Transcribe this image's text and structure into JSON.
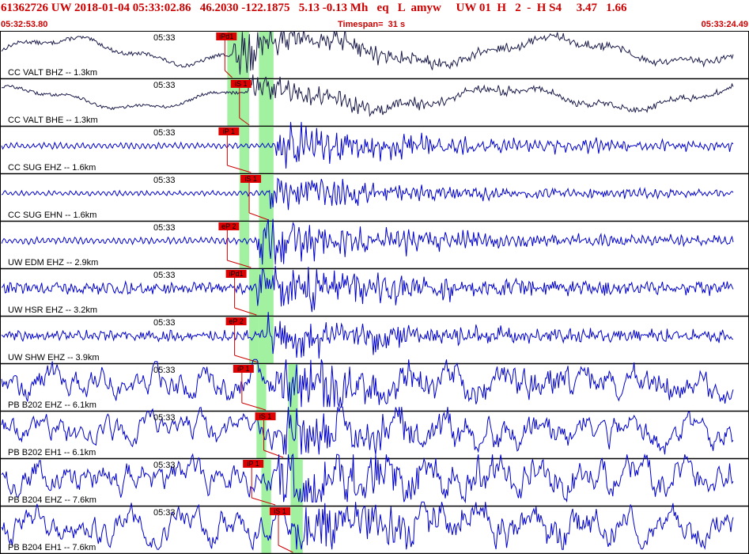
{
  "header": {
    "event_line": "61362726 UW 2018-01-04 05:33:02.86   46.2030 -122.1875   5.13 -0.13 Mh   eq   L  amyw     UW 01  H   2  -  H S4     3.47   1.66",
    "start_time": "05:32:53.80",
    "timespan": "Timespan=  31 s",
    "end_time": "05:33:24.49"
  },
  "colors": {
    "label_text": "#cc0000",
    "trace_accel": "#1a1a4a",
    "trace_vel": "#0000cc",
    "phase_box": "#dd0000",
    "phase_line": "#cc0000",
    "window_fill": "#90ee90",
    "divider": "#000000"
  },
  "chart_data": {
    "type": "line",
    "time_start_s": 0,
    "time_end_s": 30.69,
    "timespan_s": 31,
    "panels": [
      {
        "tick": "05:33",
        "label": "CC VALT BHZ -- 1.3km",
        "phase": "iPd1",
        "phase_time_s": 9.2,
        "windows": [
          [
            9.3,
            10.2
          ],
          [
            10.6,
            11.2
          ]
        ],
        "waveform": "long-period",
        "amplitude": 0.55,
        "onset_s": 9.5
      },
      {
        "tick": "05:33",
        "label": "CC VALT BHE -- 1.3km",
        "phase": "iS 1",
        "phase_time_s": 9.8,
        "windows": [
          [
            9.3,
            10.2
          ],
          [
            10.6,
            11.2
          ]
        ],
        "waveform": "long-period",
        "amplitude": 0.45,
        "onset_s": 10.2
      },
      {
        "tick": "05:33",
        "label": "CC SUG EHZ -- 1.6km",
        "phase": "iP 1",
        "phase_time_s": 9.3,
        "windows": [
          [
            9.8,
            10.2
          ],
          [
            10.6,
            11.2
          ]
        ],
        "waveform": "short-period",
        "amplitude": 0.5,
        "onset_s": 11.3
      },
      {
        "tick": "05:33",
        "label": "CC SUG EHN -- 1.6km",
        "phase": "iS 1",
        "phase_time_s": 10.2,
        "windows": [
          [
            9.8,
            10.2
          ],
          [
            10.6,
            11.2
          ]
        ],
        "waveform": "short-period",
        "amplitude": 0.4,
        "onset_s": 11.0
      },
      {
        "tick": "05:33",
        "label": "UW EDM EHZ -- 2.9km",
        "phase": "eP 2",
        "phase_time_s": 9.3,
        "windows": [
          [
            9.8,
            10.2
          ],
          [
            10.6,
            11.2
          ]
        ],
        "waveform": "short-period",
        "amplitude": 0.55,
        "onset_s": 10.5
      },
      {
        "tick": "05:33",
        "label": "UW HSR EHZ -- 3.2km",
        "phase": "iPd1",
        "phase_time_s": 9.6,
        "windows": [
          [
            10.2,
            10.6
          ],
          [
            10.6,
            11.2
          ]
        ],
        "waveform": "noisy",
        "amplitude": 0.55,
        "onset_s": 10.5
      },
      {
        "tick": "05:33",
        "label": "UW SHW EHZ -- 3.9km",
        "phase": "eP 2",
        "phase_time_s": 9.6,
        "windows": [
          [
            10.2,
            10.6
          ],
          [
            10.6,
            11.2
          ]
        ],
        "waveform": "noisy",
        "amplitude": 0.5,
        "onset_s": 10.9
      },
      {
        "tick": "05:33",
        "label": "PB B202 EHZ -- 6.1km",
        "phase": "iP 1",
        "phase_time_s": 9.9,
        "windows": [
          [
            10.5,
            10.9
          ],
          [
            11.8,
            12.2
          ]
        ],
        "waveform": "borehole",
        "amplitude": 0.6,
        "onset_s": 11.3
      },
      {
        "tick": "05:33",
        "label": "PB B202 EH1 -- 6.1km",
        "phase": "iS 1",
        "phase_time_s": 10.8,
        "windows": [
          [
            10.5,
            10.9
          ],
          [
            11.8,
            12.2
          ]
        ],
        "waveform": "borehole",
        "amplitude": 0.55,
        "onset_s": 11.6
      },
      {
        "tick": "05:33",
        "label": "PB B204 EHZ -- 7.6km",
        "phase": "iP 1",
        "phase_time_s": 10.3,
        "windows": [
          [
            10.7,
            11.1
          ],
          [
            11.9,
            12.4
          ]
        ],
        "waveform": "borehole",
        "amplitude": 0.65,
        "onset_s": 11.4
      },
      {
        "tick": "05:33",
        "label": "PB B204 EH1 -- 7.6km",
        "phase": "iS 1",
        "phase_time_s": 11.4,
        "windows": [
          [
            10.7,
            11.1
          ],
          [
            11.9,
            12.4
          ]
        ],
        "waveform": "borehole",
        "amplitude": 0.65,
        "onset_s": 12.0
      }
    ]
  }
}
